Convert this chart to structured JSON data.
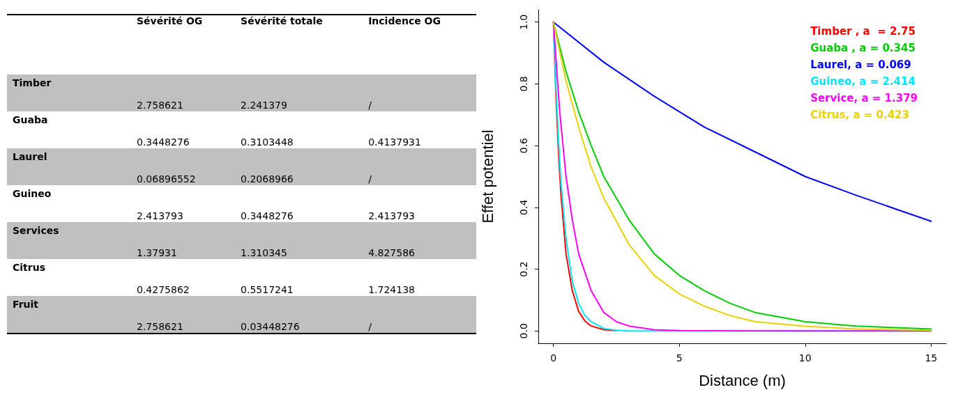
{
  "chart_data": [
    {
      "type": "other",
      "categories": [
        "Sévérité OG",
        "Sévérité totale",
        "Incidence OG"
      ],
      "y_categories": [
        "Timber",
        "Guaba",
        "Laurel",
        "Guineo",
        "Services",
        "Citrus",
        "Fruit"
      ],
      "cell_labels": [
        [
          "2.758621",
          "2.241379",
          "/"
        ],
        [
          "0.3448276",
          "0.3103448",
          "0.4137931"
        ],
        [
          "0.06896552",
          "0.2068966",
          "/"
        ],
        [
          "2.413793",
          "0.3448276",
          "2.413793"
        ],
        [
          "1.37931",
          "1.310345",
          "4.827586"
        ],
        [
          "0.4275862",
          "0.5517241",
          "1.724138"
        ],
        [
          "2.758621",
          "0.03448276",
          "/"
        ]
      ]
    },
    {
      "type": "line",
      "xlabel": "Distance (m)",
      "ylabel": "Effet potentiel",
      "xlim": [
        -0.6,
        15.6
      ],
      "xticks": [
        0,
        5,
        10,
        15
      ],
      "ylim": [
        -0.04,
        1.04
      ],
      "yticks": [
        {
          "value": 0,
          "label": "0.0"
        },
        0.2,
        0.4,
        0.6,
        0.8,
        {
          "value": 1,
          "label": "1.0"
        }
      ],
      "grid": false,
      "legend": "top right",
      "marker": "none",
      "line_style": "solid",
      "series": [
        {
          "name": "Timber , a  = 2.75",
          "color": "#ff0000",
          "x": [
            0,
            0.1,
            0.2,
            0.3,
            0.5,
            0.75,
            1,
            1.25,
            1.5,
            2,
            2.5
          ],
          "values": [
            1,
            0.76,
            0.58,
            0.44,
            0.25,
            0.13,
            0.064,
            0.032,
            0.016,
            0.004,
            0.001
          ]
        },
        {
          "name": "Guaba , a = 0.345",
          "color": "#00cc00",
          "x": [
            0,
            0.5,
            1,
            1.5,
            2,
            3,
            4,
            5,
            6,
            7,
            8,
            10,
            12,
            15
          ],
          "values": [
            1,
            0.84,
            0.71,
            0.6,
            0.5,
            0.36,
            0.25,
            0.18,
            0.13,
            0.09,
            0.06,
            0.03,
            0.016,
            0.006
          ]
        },
        {
          "name": "Laurel, a = 0.069",
          "color": "#0000ff",
          "x": [
            0,
            2,
            4,
            6,
            8,
            10,
            12,
            15
          ],
          "values": [
            1,
            0.87,
            0.76,
            0.66,
            0.58,
            0.5,
            0.44,
            0.355
          ]
        },
        {
          "name": "Guineo, a = 2.414",
          "color": "#00e5ff",
          "x": [
            0,
            0.1,
            0.2,
            0.3,
            0.5,
            0.75,
            1,
            1.25,
            1.5,
            2,
            2.5,
            3,
            5,
            10,
            15
          ],
          "values": [
            1,
            0.79,
            0.62,
            0.48,
            0.3,
            0.16,
            0.09,
            0.05,
            0.03,
            0.008,
            0.002,
            0,
            0,
            0,
            0
          ]
        },
        {
          "name": "Service, a = 1.379",
          "color": "#ff00ff",
          "x": [
            0,
            0.25,
            0.5,
            0.75,
            1,
            1.5,
            2,
            2.5,
            3,
            4,
            5,
            10,
            15
          ],
          "values": [
            1,
            0.71,
            0.5,
            0.36,
            0.25,
            0.13,
            0.06,
            0.03,
            0.016,
            0.004,
            0.001,
            0,
            0
          ]
        },
        {
          "name": "Citrus, a = 0.423",
          "color": "#e6d200",
          "x": [
            0,
            0.5,
            1,
            1.5,
            2,
            3,
            4,
            5,
            6,
            7,
            8,
            10,
            12,
            15
          ],
          "values": [
            1,
            0.81,
            0.66,
            0.53,
            0.43,
            0.28,
            0.18,
            0.12,
            0.08,
            0.05,
            0.03,
            0.015,
            0.006,
            0.002
          ]
        }
      ]
    }
  ]
}
